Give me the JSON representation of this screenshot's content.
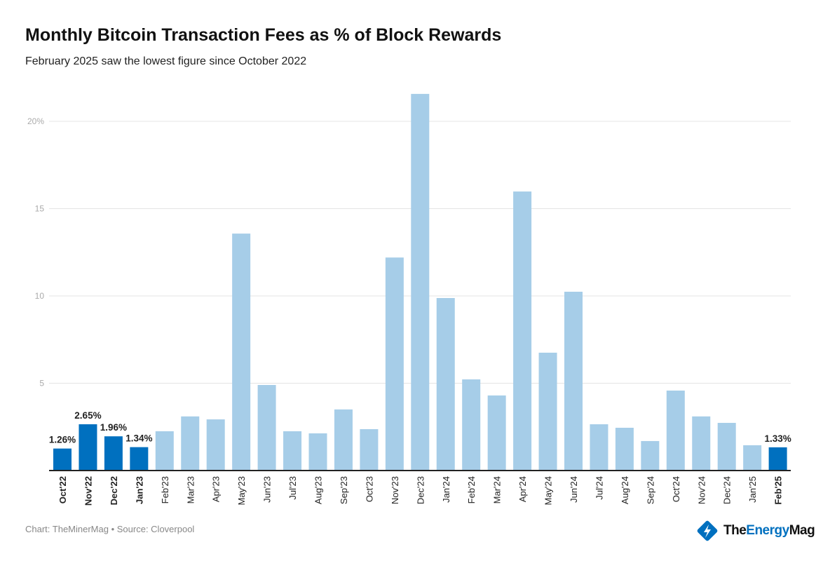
{
  "title": "Monthly Bitcoin Transaction Fees as % of Block Rewards",
  "subtitle": "February 2025 saw the lowest figure since October 2022",
  "source": "Chart: TheMinerMag • Source: Cloverpool",
  "logo": {
    "part1": "The",
    "part2": "Energy",
    "part3": "Mag"
  },
  "colors": {
    "highlight": "#0070BF",
    "default": "#A6CDE8",
    "grid": "#e4e4e4",
    "axis": "#222222"
  },
  "chart_data": {
    "type": "bar",
    "title": "Monthly Bitcoin Transaction Fees as % of Block Rewards",
    "ylim": [
      0,
      22
    ],
    "yticks": [
      5,
      10,
      15,
      20
    ],
    "ytick_labels": [
      "5",
      "10",
      "15",
      "20%"
    ],
    "grid": true,
    "categories": [
      "Oct'22",
      "Nov'22",
      "Dec'22",
      "Jan'23",
      "Feb'23",
      "Mar'23",
      "Apr'23",
      "May'23",
      "Jun'23",
      "Jul'23",
      "Aug'23",
      "Sep'23",
      "Oct'23",
      "Nov'23",
      "Dec'23",
      "Jan'24",
      "Feb'24",
      "Mar'24",
      "Apr'24",
      "May'24",
      "Jun'24",
      "Jul'24",
      "Aug'24",
      "Sep'24",
      "Oct'24",
      "Nov'24",
      "Dec'24",
      "Jan'25",
      "Feb'25"
    ],
    "values": [
      1.26,
      2.65,
      1.96,
      1.34,
      2.25,
      3.1,
      2.93,
      13.57,
      4.9,
      2.25,
      2.13,
      3.5,
      2.37,
      12.2,
      21.57,
      9.88,
      5.22,
      4.3,
      15.98,
      6.75,
      10.24,
      2.65,
      2.45,
      1.69,
      4.58,
      3.1,
      2.73,
      1.45,
      1.33
    ],
    "highlighted": [
      "Oct'22",
      "Nov'22",
      "Dec'22",
      "Jan'23",
      "Feb'25"
    ],
    "data_labels": {
      "Oct'22": "1.26%",
      "Nov'22": "2.65%",
      "Dec'22": "1.96%",
      "Jan'23": "1.34%",
      "Feb'25": "1.33%"
    }
  }
}
